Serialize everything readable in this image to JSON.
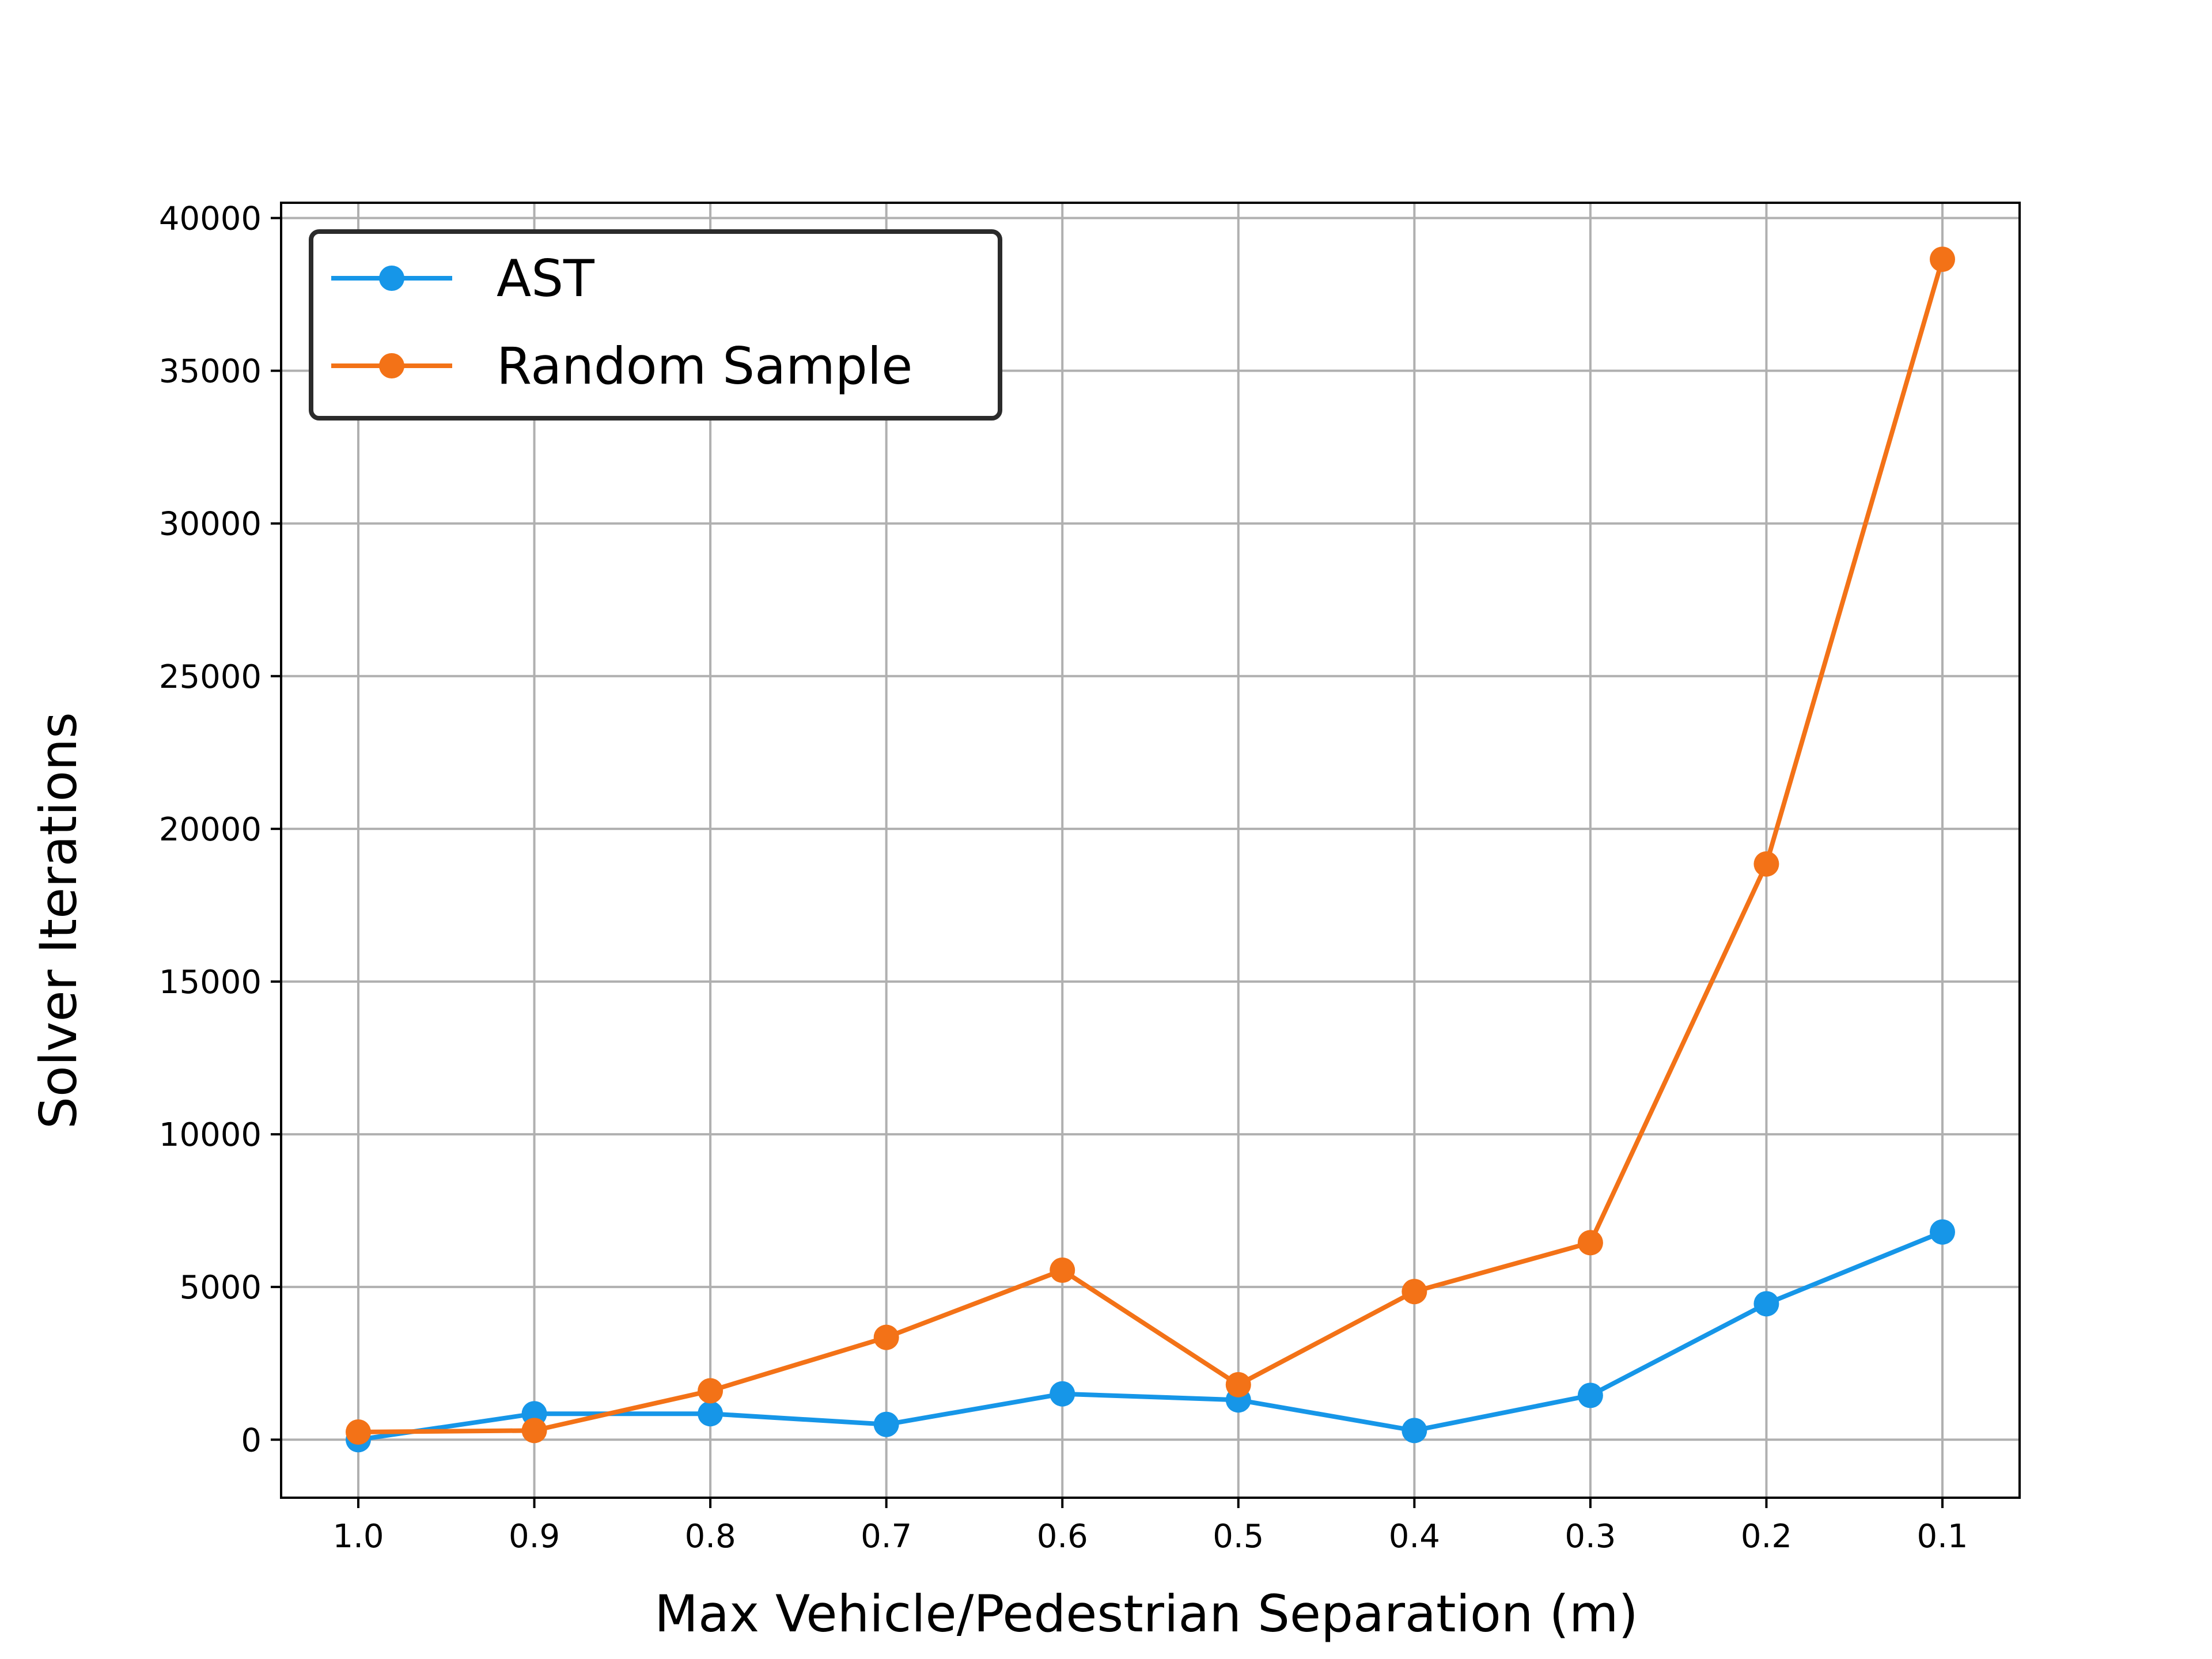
{
  "chart_data": {
    "type": "line",
    "title": "",
    "xlabel": "Max Vehicle/Pedestrian Separation (m)",
    "ylabel": "Solver Iterations",
    "x": [
      1.0,
      0.9,
      0.8,
      0.7,
      0.6,
      0.5,
      0.4,
      0.3,
      0.2,
      0.1
    ],
    "x_tick_labels": [
      "1.0",
      "0.9",
      "0.8",
      "0.7",
      "0.6",
      "0.5",
      "0.4",
      "0.3",
      "0.2",
      "0.1"
    ],
    "x_reversed": true,
    "y_ticks": [
      0,
      5000,
      10000,
      15000,
      20000,
      25000,
      30000,
      35000,
      40000
    ],
    "y_tick_labels": [
      "0",
      "5000",
      "10000",
      "15000",
      "20000",
      "25000",
      "30000",
      "35000",
      "40000"
    ],
    "ylim": [
      -1900,
      40500
    ],
    "grid": true,
    "legend_placement": "top-left",
    "series": [
      {
        "name": "AST",
        "color": "#1696e8",
        "marker": "circle",
        "values": [
          0,
          850,
          850,
          500,
          1500,
          1300,
          300,
          1450,
          4450,
          6800
        ]
      },
      {
        "name": "Random Sample",
        "color": "#f37217",
        "marker": "circle",
        "values": [
          250,
          300,
          1600,
          3350,
          5550,
          1800,
          4850,
          6450,
          18850,
          38650
        ]
      }
    ]
  }
}
